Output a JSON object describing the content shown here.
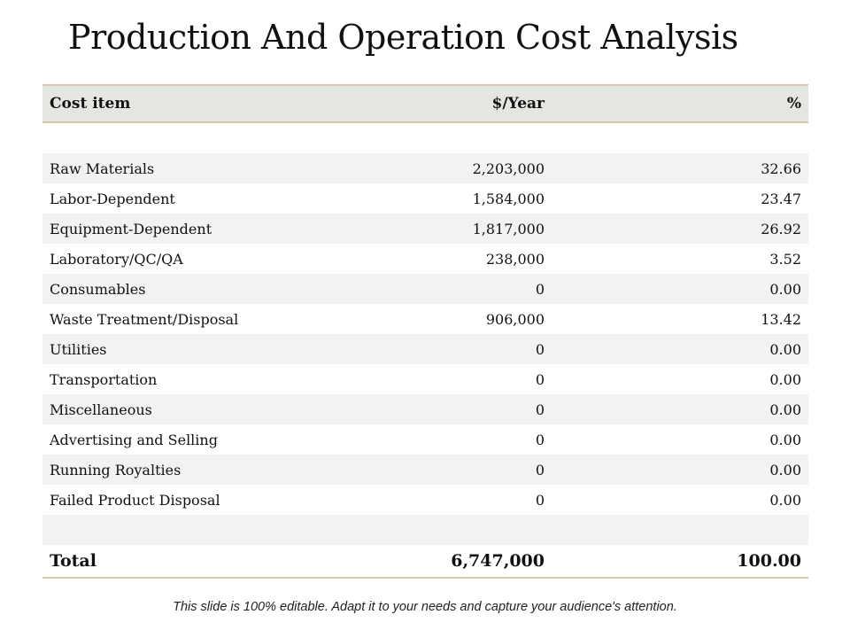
{
  "title": "Production And Operation Cost Analysis",
  "table": {
    "headers": [
      "Cost item",
      "$/Year",
      "%"
    ],
    "rows": [
      {
        "item": "Raw Materials",
        "year": "2,203,000",
        "pct": "32.66"
      },
      {
        "item": "Labor-Dependent",
        "year": "1,584,000",
        "pct": "23.47"
      },
      {
        "item": "Equipment-Dependent",
        "year": "1,817,000",
        "pct": "26.92"
      },
      {
        "item": "Laboratory/QC/QA",
        "year": "238,000",
        "pct": "3.52"
      },
      {
        "item": "Consumables",
        "year": "0",
        "pct": "0.00"
      },
      {
        "item": "Waste Treatment/Disposal",
        "year": "906,000",
        "pct": "13.42"
      },
      {
        "item": "Utilities",
        "year": "0",
        "pct": "0.00"
      },
      {
        "item": "Transportation",
        "year": "0",
        "pct": "0.00"
      },
      {
        "item": "Miscellaneous",
        "year": "0",
        "pct": "0.00"
      },
      {
        "item": "Advertising and Selling",
        "year": "0",
        "pct": "0.00"
      },
      {
        "item": "Running Royalties",
        "year": "0",
        "pct": "0.00"
      },
      {
        "item": "Failed Product Disposal",
        "year": "0",
        "pct": "0.00"
      }
    ],
    "total": {
      "item": "Total",
      "year": "6,747,000",
      "pct": "100.00"
    }
  },
  "footer": "This slide is 100% editable. Adapt it to your needs and capture your audience's attention."
}
